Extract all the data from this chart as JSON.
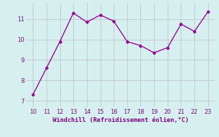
{
  "x": [
    10,
    11,
    12,
    13,
    14,
    15,
    16,
    17,
    18,
    19,
    20,
    21,
    22,
    23
  ],
  "y": [
    7.3,
    8.6,
    9.9,
    11.3,
    10.85,
    11.2,
    10.9,
    9.9,
    9.7,
    9.35,
    9.6,
    10.75,
    10.4,
    11.35
  ],
  "line_color": "#990099",
  "marker": "D",
  "marker_size": 2.0,
  "line_width": 1.0,
  "bg_color": "#d6f0f0",
  "grid_color": "#bbbbbb",
  "xlabel": "Windchill (Refroidissement éolien,°C)",
  "xlabel_color": "#800080",
  "xlabel_fontsize": 6.5,
  "tick_color": "#800080",
  "tick_fontsize": 6,
  "xlim": [
    9.5,
    23.5
  ],
  "ylim": [
    6.7,
    11.8
  ],
  "xticks": [
    10,
    11,
    12,
    13,
    14,
    15,
    16,
    17,
    18,
    19,
    20,
    21,
    22,
    23
  ],
  "yticks": [
    7,
    8,
    9,
    10,
    11
  ]
}
